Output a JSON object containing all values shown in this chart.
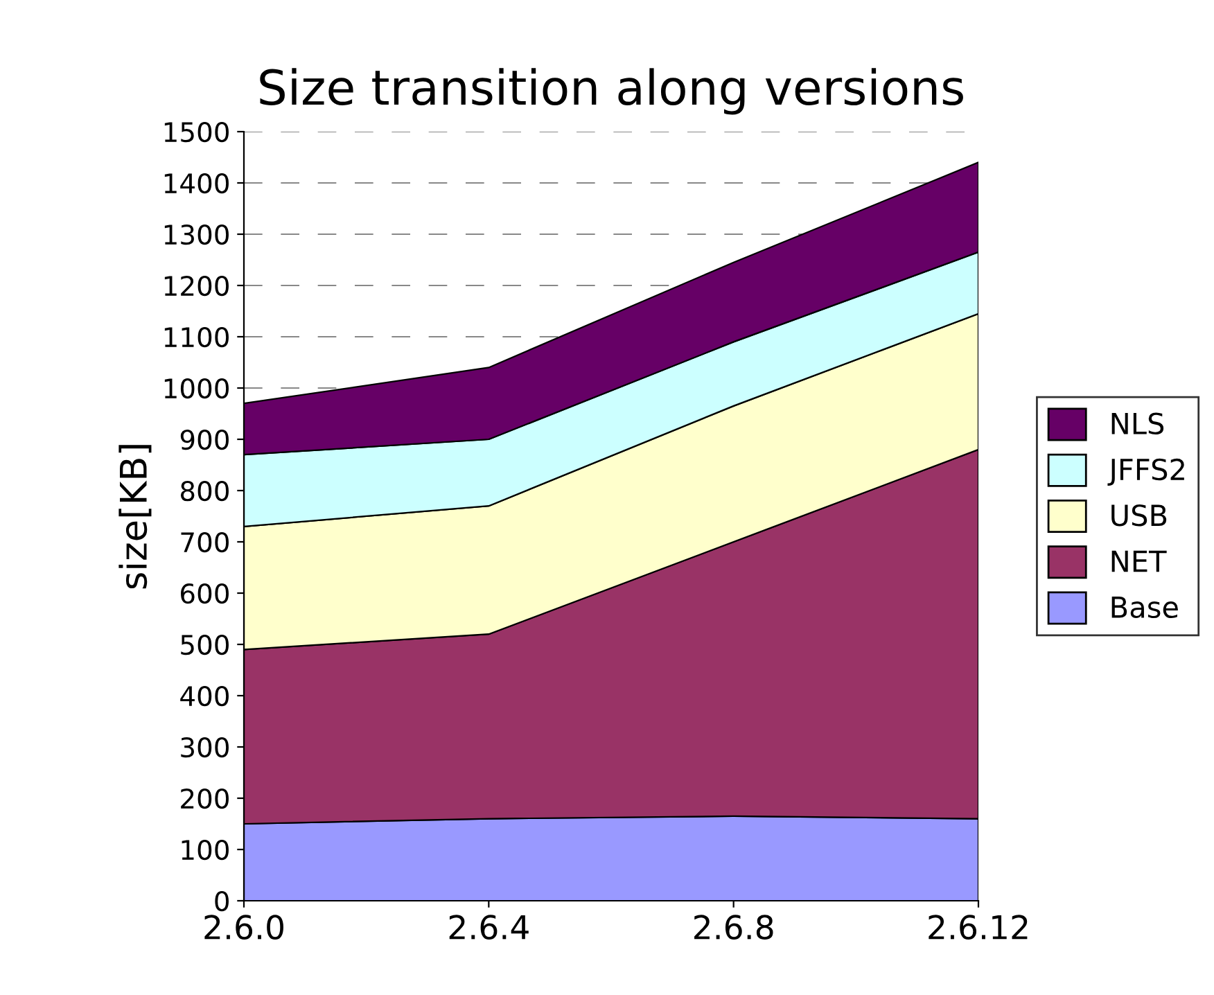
{
  "chart_data": {
    "type": "area",
    "stacked": true,
    "title": "Size transition along versions",
    "ylabel": "size[KB]",
    "categories": [
      "2.6.0",
      "2.6.4",
      "2.6.8",
      "2.6.12"
    ],
    "series": [
      {
        "name": "Base",
        "color": "#9999ff",
        "values": [
          150,
          160,
          165,
          160
        ]
      },
      {
        "name": "NET",
        "color": "#993366",
        "values": [
          340,
          360,
          535,
          720
        ]
      },
      {
        "name": "USB",
        "color": "#ffffcc",
        "values": [
          240,
          250,
          265,
          265
        ]
      },
      {
        "name": "JFFS2",
        "color": "#ccffff",
        "values": [
          140,
          130,
          125,
          120
        ]
      },
      {
        "name": "NLS",
        "color": "#660066",
        "values": [
          100,
          140,
          155,
          175
        ]
      }
    ],
    "ylim": [
      0,
      1500
    ],
    "yticks": [
      0,
      100,
      200,
      300,
      400,
      500,
      600,
      700,
      800,
      900,
      1000,
      1100,
      1200,
      1300,
      1400,
      1500
    ],
    "grid": "y",
    "legend": "right"
  }
}
